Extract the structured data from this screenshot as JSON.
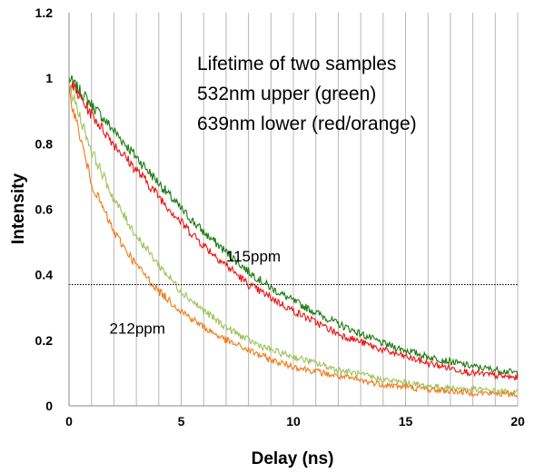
{
  "chart_data": {
    "type": "line",
    "title": "",
    "xlabel": "Delay (ns)",
    "ylabel": "Intensity",
    "xlim": [
      0,
      20
    ],
    "ylim": [
      0,
      1.2
    ],
    "x_ticks": [
      "0",
      "5",
      "10",
      "15",
      "20"
    ],
    "y_ticks": [
      "0",
      "0.2",
      "0.4",
      "0.6",
      "0.8",
      "1",
      "1.2"
    ],
    "vertical_grid_every": 1,
    "reference_line": {
      "y": 0.37,
      "style": "dotted"
    },
    "annotation_lines": [
      "Lifetime of two samples",
      "532nm upper (green)",
      "639nm lower (red/orange)"
    ],
    "labels": [
      {
        "text": "115ppm",
        "x": 7,
        "y": 0.44
      },
      {
        "text": "212ppm",
        "x": 1.8,
        "y": 0.22
      }
    ],
    "series": [
      {
        "color": "#1a7a10",
        "x": [
          0,
          1,
          2,
          3,
          4,
          5,
          6,
          7,
          8,
          9,
          10,
          12,
          14,
          16,
          18,
          20
        ],
        "y": [
          1.0,
          0.92,
          0.84,
          0.76,
          0.68,
          0.6,
          0.53,
          0.47,
          0.41,
          0.36,
          0.32,
          0.25,
          0.19,
          0.15,
          0.12,
          0.1
        ]
      },
      {
        "color": "#ee1111",
        "x": [
          0,
          1,
          2,
          3,
          4,
          5,
          6,
          7,
          8,
          9,
          10,
          12,
          14,
          16,
          18,
          20
        ],
        "y": [
          0.99,
          0.89,
          0.8,
          0.72,
          0.64,
          0.56,
          0.49,
          0.43,
          0.37,
          0.33,
          0.29,
          0.22,
          0.17,
          0.13,
          0.1,
          0.085
        ]
      },
      {
        "color": "#9dc35a",
        "x": [
          0,
          1,
          2,
          3,
          4,
          5,
          6,
          7,
          8,
          9,
          10,
          12,
          14,
          16,
          18,
          20
        ],
        "y": [
          0.98,
          0.78,
          0.63,
          0.52,
          0.43,
          0.35,
          0.29,
          0.24,
          0.2,
          0.17,
          0.15,
          0.11,
          0.08,
          0.06,
          0.05,
          0.04
        ]
      },
      {
        "color": "#f07a1a",
        "x": [
          0,
          1,
          2,
          3,
          4,
          5,
          6,
          7,
          8,
          9,
          10,
          12,
          14,
          16,
          18,
          20
        ],
        "y": [
          0.96,
          0.68,
          0.53,
          0.43,
          0.35,
          0.29,
          0.24,
          0.2,
          0.17,
          0.14,
          0.12,
          0.09,
          0.065,
          0.05,
          0.04,
          0.035
        ]
      }
    ]
  }
}
